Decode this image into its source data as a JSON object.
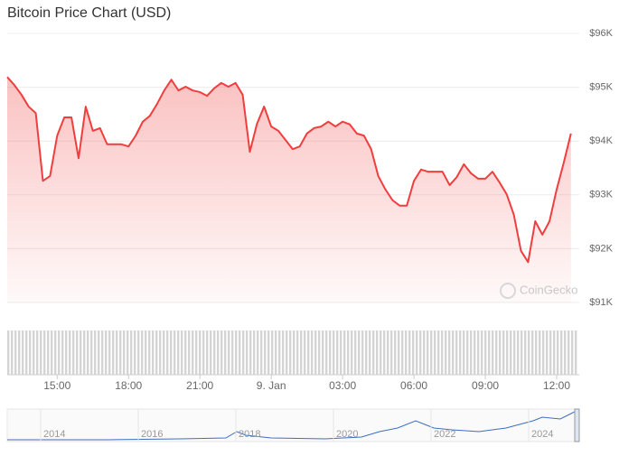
{
  "chart_data": {
    "type": "line",
    "title": "Bitcoin Price Chart (USD)",
    "watermark": "CoinGecko",
    "x": [
      12.9,
      13.2,
      13.5,
      13.8,
      14.1,
      14.4,
      14.7,
      15,
      15.3,
      15.6,
      15.9,
      16.2,
      16.5,
      16.8,
      17.1,
      17.4,
      17.7,
      18,
      18.3,
      18.6,
      18.9,
      19.2,
      19.5,
      19.8,
      20.1,
      20.4,
      20.7,
      21,
      21.3,
      21.6,
      21.9,
      22.2,
      22.5,
      22.8,
      23.1,
      23.4,
      23.7,
      24,
      24.3,
      24.6,
      24.9,
      25.2,
      25.5,
      25.8,
      26.1,
      26.4,
      26.7,
      27,
      27.3,
      27.6,
      27.9,
      28.2,
      28.5,
      28.8,
      29.1,
      29.4,
      29.7,
      30,
      30.3,
      30.6,
      30.9,
      31.2,
      31.5,
      31.8,
      32.1,
      32.4,
      32.7,
      33,
      33.3,
      33.6,
      33.9,
      34.2,
      34.5,
      34.8,
      35.1,
      35.4,
      35.7,
      36,
      36.3,
      36.6
    ],
    "values": [
      95190,
      95040,
      94860,
      94640,
      94520,
      93260,
      93350,
      94100,
      94440,
      94440,
      93680,
      94640,
      94190,
      94240,
      93940,
      93940,
      93940,
      93900,
      94100,
      94360,
      94470,
      94690,
      94940,
      95140,
      94940,
      95010,
      94940,
      94910,
      94840,
      94980,
      95080,
      95010,
      95080,
      94860,
      93800,
      94320,
      94640,
      94270,
      94190,
      94020,
      93850,
      93900,
      94140,
      94240,
      94270,
      94360,
      94270,
      94360,
      94310,
      94140,
      94100,
      93850,
      93350,
      93100,
      92900,
      92800,
      92800,
      93260,
      93470,
      93430,
      93430,
      93430,
      93180,
      93330,
      93570,
      93400,
      93300,
      93300,
      93430,
      93230,
      93010,
      92630,
      91960,
      91750,
      92510,
      92260,
      92510,
      93100,
      93600,
      94140
    ],
    "color": "#f03e3e",
    "xlim": [
      12.9,
      36.95
    ],
    "xticks": [
      {
        "value": 15,
        "label": "15:00"
      },
      {
        "value": 18,
        "label": "18:00"
      },
      {
        "value": 21,
        "label": "21:00"
      },
      {
        "value": 24,
        "label": "9. Jan"
      },
      {
        "value": 27,
        "label": "03:00"
      },
      {
        "value": 30,
        "label": "06:00"
      },
      {
        "value": 33,
        "label": "09:00"
      },
      {
        "value": 36,
        "label": "12:00"
      }
    ],
    "ylim": [
      91000,
      96000
    ],
    "yticks": [
      {
        "value": 91000,
        "label": "$91K"
      },
      {
        "value": 92000,
        "label": "$92K"
      },
      {
        "value": 93000,
        "label": "$93K"
      },
      {
        "value": 94000,
        "label": "$94K"
      },
      {
        "value": 95000,
        "label": "$95K"
      },
      {
        "value": 96000,
        "label": "$96K"
      }
    ],
    "grid": true,
    "navigator_labels": [
      "2014",
      "2016",
      "2018",
      "2020",
      "2022",
      "2024"
    ]
  }
}
